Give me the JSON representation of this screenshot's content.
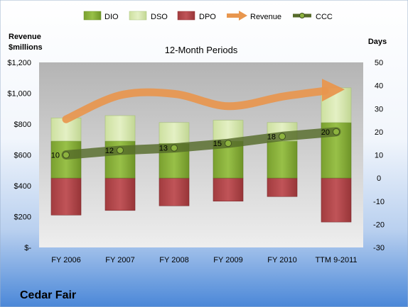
{
  "chart_data": {
    "type": "bar",
    "title": "12-Month Periods",
    "company": "Cedar Fair",
    "left_axis_label_line1": "Revenue",
    "left_axis_label_line2": "$millions",
    "right_axis_label": "Days",
    "categories": [
      "FY 2006",
      "FY 2007",
      "FY 2008",
      "FY 2009",
      "FY 2010",
      "TTM 9-2011"
    ],
    "left_axis": {
      "min": 0,
      "max": 1200,
      "step": 200,
      "tick_labels": [
        "$-",
        "$200",
        "$400",
        "$600",
        "$800",
        "$1,000",
        "$1,200"
      ]
    },
    "right_axis": {
      "min": -30,
      "max": 50,
      "step": 10,
      "tick_labels": [
        "-30",
        "-20",
        "-10",
        "0",
        "10",
        "20",
        "30",
        "40",
        "50"
      ]
    },
    "series": [
      {
        "name": "DIO",
        "kind": "bar",
        "axis": "right",
        "color": "#8db33f",
        "values": [
          16,
          16,
          15,
          16,
          16,
          24
        ]
      },
      {
        "name": "DSO",
        "kind": "bar",
        "axis": "right",
        "color": "#d6e8ae",
        "values": [
          10,
          11,
          9,
          9,
          8,
          15
        ]
      },
      {
        "name": "DPO",
        "kind": "bar",
        "axis": "right",
        "color": "#b6474a",
        "values": [
          -16,
          -14,
          -12,
          -10,
          -8,
          -19
        ]
      },
      {
        "name": "Revenue",
        "kind": "arrow",
        "axis": "left",
        "color": "#e8964e",
        "values": [
          831,
          987,
          996,
          916,
          978,
          1020
        ]
      },
      {
        "name": "CCC",
        "kind": "line",
        "axis": "right",
        "color": "#566b2a",
        "values": [
          10,
          12,
          13,
          15,
          18,
          20
        ],
        "labels": [
          "10",
          "12",
          "13",
          "15",
          "18",
          "20"
        ]
      }
    ],
    "legend_position": "top",
    "grid": false
  }
}
